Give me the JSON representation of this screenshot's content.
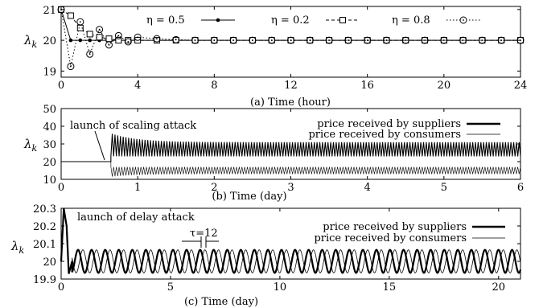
{
  "chart_data": [
    {
      "type": "line",
      "caption": "(a) Time (hour)",
      "ylabel": "λ_k",
      "xlim": [
        0,
        24
      ],
      "ylim": [
        18.8,
        21.1
      ],
      "xticks": [
        "0",
        "4",
        "8",
        "12",
        "16",
        "20",
        "24"
      ],
      "yticks": [
        "19",
        "20",
        "21"
      ],
      "series": [
        {
          "name": "η = 0.5",
          "marker": "filled-circle",
          "style": "solid",
          "x": [
            0,
            0.5,
            1,
            1.5,
            2,
            2.5,
            3,
            3.5,
            4,
            5,
            6,
            7,
            8,
            9,
            10,
            11,
            12,
            13,
            14,
            15,
            16,
            17,
            18,
            19,
            20,
            21,
            22,
            23,
            24
          ],
          "y": [
            21,
            20,
            20,
            20,
            20,
            20,
            20,
            20,
            20,
            20,
            20,
            20,
            20,
            20,
            20,
            20,
            20,
            20,
            20,
            20,
            20,
            20,
            20,
            20,
            20,
            20,
            20,
            20,
            20
          ]
        },
        {
          "name": "η = 0.2",
          "marker": "open-square",
          "style": "dashed",
          "x": [
            0,
            0.5,
            1,
            1.5,
            2,
            2.5,
            3,
            3.5,
            4,
            5,
            6,
            7,
            8,
            9,
            10,
            11,
            12,
            13,
            14,
            15,
            16,
            17,
            18,
            19,
            20,
            21,
            22,
            23,
            24
          ],
          "y": [
            21,
            20.8,
            20.4,
            20.2,
            20.1,
            20.05,
            20,
            20,
            20,
            20,
            20,
            20,
            20,
            20,
            20,
            20,
            20,
            20,
            20,
            20,
            20,
            20,
            20,
            20,
            20,
            20,
            20,
            20,
            20
          ]
        },
        {
          "name": "η = 0.8",
          "marker": "dotted-circle",
          "style": "dotted",
          "x": [
            0,
            0.5,
            1,
            1.5,
            2,
            2.5,
            3,
            3.5,
            4,
            5,
            6,
            7,
            8,
            9,
            10,
            11,
            12,
            13,
            14,
            15,
            16,
            17,
            18,
            19,
            20,
            21,
            22,
            23,
            24
          ],
          "y": [
            21,
            19.15,
            20.6,
            19.55,
            20.35,
            19.85,
            20.15,
            19.95,
            20.1,
            20.05,
            20.02,
            20,
            20,
            20,
            20,
            20,
            20,
            20,
            20,
            20,
            20,
            20,
            20,
            20,
            20,
            20,
            20,
            20,
            20
          ]
        }
      ]
    },
    {
      "type": "line",
      "caption": "(b) Time (day)",
      "ylabel": "λ_k",
      "xlim": [
        0,
        6
      ],
      "ylim": [
        10,
        50
      ],
      "xticks": [
        "0",
        "1",
        "2",
        "3",
        "4",
        "5",
        "6"
      ],
      "yticks": [
        "10",
        "20",
        "30",
        "40",
        "50"
      ],
      "annotation": "launch of scaling attack",
      "attack_time": 0.65,
      "series": [
        {
          "name": "price received by suppliers",
          "before": 20,
          "after_min": 23,
          "after_max": 31,
          "peak": 36
        },
        {
          "name": "price received by consumers",
          "before": 20,
          "after_min": 13,
          "after_max": 17
        }
      ]
    },
    {
      "type": "line",
      "caption": "(c) Time (day)",
      "ylabel": "λ_k",
      "xlim": [
        0,
        21
      ],
      "ylim": [
        19.9,
        20.3
      ],
      "xticks": [
        "0",
        "5",
        "10",
        "15",
        "20"
      ],
      "yticks": [
        "19.9",
        "20",
        "20.1",
        "20.2",
        "20.3"
      ],
      "annotation": "launch of delay attack",
      "tau_label": "τ=12",
      "series": [
        {
          "name": "price received by suppliers",
          "center": 20,
          "amplitude": 0.065,
          "period_days": 0.62
        },
        {
          "name": "price received by consumers",
          "center": 20,
          "amplitude": 0.065,
          "period_days": 0.62,
          "lag_days": 0.22
        }
      ]
    }
  ]
}
